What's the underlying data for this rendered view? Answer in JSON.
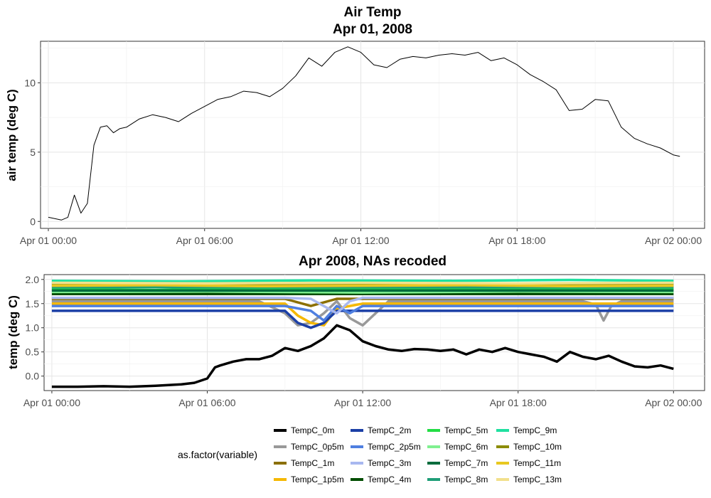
{
  "chart_data": [
    {
      "type": "line",
      "title": "Air Temp",
      "subtitle": "Apr 01, 2008",
      "ylabel": "air temp (deg C)",
      "xlabel": "",
      "x_ticks": [
        "Apr 01 00:00",
        "Apr 01 06:00",
        "Apr 01 12:00",
        "Apr 01 18:00",
        "Apr 02 00:00"
      ],
      "y_ticks": [
        "0",
        "5",
        "10"
      ],
      "xlim_hours": [
        -0.3,
        25.2
      ],
      "ylim": [
        -0.5,
        13.0
      ],
      "grid": true,
      "color": "#000000",
      "series": [
        {
          "x_hours": [
            0,
            0.5,
            0.75,
            1,
            1.25,
            1.5,
            1.75,
            2,
            2.25,
            2.5,
            2.75,
            3,
            3.5,
            4,
            4.5,
            5,
            5.5,
            6,
            6.5,
            7,
            7.5,
            8,
            8.5,
            9,
            9.5,
            10,
            10.5,
            11,
            11.5,
            12,
            12.5,
            13,
            13.5,
            14,
            14.5,
            15,
            15.5,
            16,
            16.5,
            17,
            17.5,
            18,
            18.5,
            19,
            19.5,
            20,
            20.5,
            21,
            21.5,
            22,
            22.5,
            23,
            23.5,
            24,
            24.25
          ],
          "values": [
            0.3,
            0.1,
            0.3,
            1.9,
            0.6,
            1.3,
            5.5,
            6.8,
            6.9,
            6.4,
            6.7,
            6.8,
            7.4,
            7.7,
            7.5,
            7.2,
            7.8,
            8.3,
            8.8,
            9.0,
            9.4,
            9.3,
            9.0,
            9.6,
            10.5,
            11.8,
            11.2,
            12.2,
            12.6,
            12.2,
            11.3,
            11.1,
            11.7,
            11.9,
            11.8,
            12.0,
            12.1,
            12.0,
            12.2,
            11.6,
            11.8,
            11.3,
            10.6,
            10.1,
            9.5,
            8.0,
            8.1,
            8.8,
            8.7,
            6.8,
            6.0,
            5.6,
            5.3,
            4.8,
            4.7
          ]
        }
      ]
    },
    {
      "type": "line",
      "title": "Apr 2008, NAs recoded",
      "ylabel": "temp (deg C)",
      "xlabel": "",
      "x_ticks": [
        "Apr 01 00:00",
        "Apr 01 06:00",
        "Apr 01 12:00",
        "Apr 01 18:00",
        "Apr 02 00:00"
      ],
      "y_ticks": [
        "0.0",
        "0.5",
        "1.0",
        "1.5",
        "2.0"
      ],
      "xlim_hours": [
        -0.3,
        25.2
      ],
      "ylim": [
        -0.3,
        2.1
      ],
      "grid": true,
      "legend_title": "as.factor(variable)",
      "legend_position": "bottom",
      "series": [
        {
          "name": "TempC_0m",
          "color": "#000000",
          "x_hours": [
            0,
            1,
            2,
            3,
            4,
            5,
            5.5,
            6,
            6.3,
            6.5,
            7,
            7.5,
            8,
            8.5,
            9,
            9.5,
            10,
            10.5,
            11,
            11.5,
            12,
            12.5,
            13,
            13.5,
            14,
            14.5,
            15,
            15.5,
            16,
            16.5,
            17,
            17.5,
            18,
            18.5,
            19,
            19.5,
            20,
            20.5,
            21,
            21.5,
            22,
            22.5,
            23,
            23.5,
            24
          ],
          "values": [
            -0.22,
            -0.22,
            -0.21,
            -0.22,
            -0.2,
            -0.17,
            -0.14,
            -0.05,
            0.18,
            0.22,
            0.3,
            0.35,
            0.35,
            0.42,
            0.58,
            0.52,
            0.62,
            0.78,
            1.05,
            0.95,
            0.72,
            0.62,
            0.55,
            0.52,
            0.56,
            0.55,
            0.52,
            0.55,
            0.45,
            0.55,
            0.5,
            0.58,
            0.5,
            0.45,
            0.4,
            0.3,
            0.5,
            0.4,
            0.35,
            0.42,
            0.3,
            0.2,
            0.18,
            0.22,
            0.15
          ]
        },
        {
          "name": "TempC_0p5m",
          "color": "#999999",
          "x_hours": [
            0,
            8,
            9,
            9.5,
            10,
            10.5,
            11,
            11.5,
            12,
            13,
            19,
            20.5,
            21,
            21.3,
            21.6,
            22,
            24
          ],
          "values": [
            1.55,
            1.55,
            1.3,
            1.05,
            1.1,
            1.3,
            1.55,
            1.2,
            1.05,
            1.55,
            1.55,
            1.55,
            1.48,
            1.15,
            1.45,
            1.55,
            1.55
          ]
        },
        {
          "name": "TempC_1m",
          "color": "#8B6F00",
          "x_hours": [
            0,
            9,
            10,
            11,
            12,
            24
          ],
          "values": [
            1.6,
            1.6,
            1.45,
            1.6,
            1.6,
            1.6
          ]
        },
        {
          "name": "TempC_1p5m",
          "color": "#F5B800",
          "x_hours": [
            0,
            9,
            9.5,
            10,
            10.5,
            11,
            12,
            24
          ],
          "values": [
            1.5,
            1.5,
            1.25,
            1.1,
            1.05,
            1.4,
            1.5,
            1.5
          ]
        },
        {
          "name": "TempC_2m",
          "color": "#1B3FA6",
          "x_hours": [
            0,
            9,
            9.5,
            10,
            10.5,
            11,
            12,
            24
          ],
          "values": [
            1.35,
            1.35,
            1.1,
            1.0,
            1.1,
            1.35,
            1.35,
            1.35
          ]
        },
        {
          "name": "TempC_2p5m",
          "color": "#4F7FE0",
          "x_hours": [
            0,
            9,
            10,
            10.5,
            11,
            11.5,
            12,
            13,
            24
          ],
          "values": [
            1.45,
            1.45,
            1.35,
            1.15,
            1.45,
            1.3,
            1.45,
            1.45,
            1.45
          ]
        },
        {
          "name": "TempC_3m",
          "color": "#A8B8F0",
          "x_hours": [
            0,
            9,
            10,
            11,
            11.5,
            12,
            24
          ],
          "values": [
            1.62,
            1.62,
            1.6,
            1.3,
            1.55,
            1.62,
            1.62
          ]
        },
        {
          "name": "TempC_4m",
          "color": "#004D00",
          "x_hours": [
            0,
            24
          ],
          "values": [
            1.7,
            1.7
          ]
        },
        {
          "name": "TempC_5m",
          "color": "#22DD44",
          "x_hours": [
            0,
            4,
            8,
            12,
            16,
            20,
            24
          ],
          "values": [
            1.8,
            1.78,
            1.82,
            1.8,
            1.79,
            1.81,
            1.8
          ]
        },
        {
          "name": "TempC_6m",
          "color": "#80F090",
          "x_hours": [
            0,
            6,
            12,
            18,
            24
          ],
          "values": [
            1.74,
            1.75,
            1.73,
            1.75,
            1.74
          ]
        },
        {
          "name": "TempC_7m",
          "color": "#006B3C",
          "x_hours": [
            0,
            24
          ],
          "values": [
            1.77,
            1.77
          ]
        },
        {
          "name": "TempC_8m",
          "color": "#1F9E78",
          "x_hours": [
            0,
            24
          ],
          "values": [
            1.84,
            1.84
          ]
        },
        {
          "name": "TempC_9m",
          "color": "#1FE0A0",
          "x_hours": [
            0,
            5,
            10,
            15,
            20,
            24
          ],
          "values": [
            1.97,
            1.96,
            1.98,
            1.97,
            1.99,
            1.97
          ]
        },
        {
          "name": "TempC_10m",
          "color": "#8C8C00",
          "x_hours": [
            0,
            24
          ],
          "values": [
            1.9,
            1.9
          ]
        },
        {
          "name": "TempC_11m",
          "color": "#E8C820",
          "x_hours": [
            0,
            4,
            8,
            12,
            16,
            20,
            24
          ],
          "values": [
            1.87,
            1.88,
            1.86,
            1.87,
            1.88,
            1.86,
            1.87
          ]
        },
        {
          "name": "TempC_13m",
          "color": "#F2E08C",
          "x_hours": [
            0,
            6,
            12,
            18,
            24
          ],
          "values": [
            1.93,
            1.92,
            1.93,
            1.92,
            1.93
          ]
        }
      ],
      "legend_order": [
        "TempC_0m",
        "TempC_0p5m",
        "TempC_1m",
        "TempC_1p5m",
        "TempC_2m",
        "TempC_2p5m",
        "TempC_3m",
        "TempC_4m",
        "TempC_5m",
        "TempC_6m",
        "TempC_7m",
        "TempC_8m",
        "TempC_9m",
        "TempC_10m",
        "TempC_11m",
        "TempC_13m"
      ]
    }
  ]
}
